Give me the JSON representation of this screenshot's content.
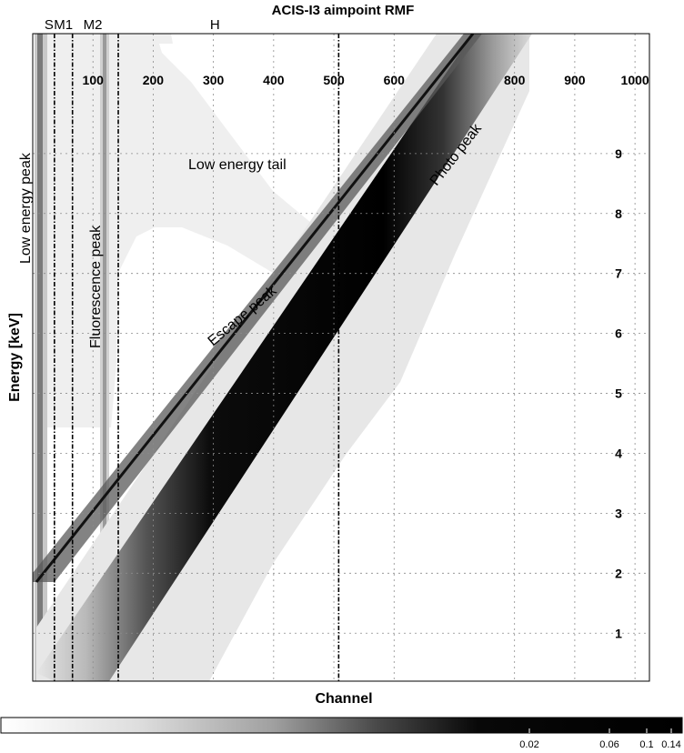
{
  "chart_data": {
    "type": "heatmap",
    "title": "ACIS-I3 aimpoint RMF",
    "xlabel": "Channel",
    "ylabel": "Energy [keV]",
    "xlim": [
      0,
      1024
    ],
    "ylim": [
      0.2,
      11
    ],
    "x_ticks": [
      100,
      200,
      300,
      400,
      500,
      600,
      800,
      900,
      1000
    ],
    "y_ticks": [
      1,
      2,
      3,
      4,
      5,
      6,
      7,
      8,
      9
    ],
    "grid": true,
    "colormap": "white-to-black",
    "colorbar": {
      "ticks": [
        "0.02",
        "0.06",
        "0.1",
        "0.14"
      ],
      "placement": "bottom"
    },
    "regions": [
      {
        "label": "S",
        "channel": 36
      },
      {
        "label": "M1",
        "channel": 66
      },
      {
        "label": "M2",
        "channel": 142
      },
      {
        "label": "H",
        "channel": 508
      }
    ],
    "annotations": [
      {
        "text": "Low energy peak",
        "rotation": -90
      },
      {
        "text": "Fluorescence peak",
        "rotation": -90
      },
      {
        "text": "Low energy tail",
        "rotation": 0
      },
      {
        "text": "Escape peak",
        "rotation": -40
      },
      {
        "text": "Photo peak",
        "rotation": -52
      }
    ]
  }
}
